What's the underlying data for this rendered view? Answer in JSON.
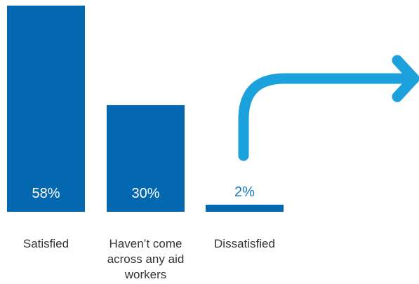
{
  "chart_data": {
    "type": "bar",
    "categories": [
      "Satisfied",
      "Haven’t come across any aid workers",
      "Dissatisfied"
    ],
    "values": [
      58,
      30,
      2
    ],
    "value_labels": [
      "58%",
      "30%",
      "2%"
    ],
    "ylim": [
      0,
      58
    ],
    "grid": false,
    "legend": "none",
    "colors": {
      "bar": "#0468b1",
      "arrow": "#1ba1db",
      "label_inside": "#ffffff",
      "label_above": "#1a78c2",
      "category_text": "#333333"
    },
    "annotation_icon": "curved-arrow-icon"
  }
}
